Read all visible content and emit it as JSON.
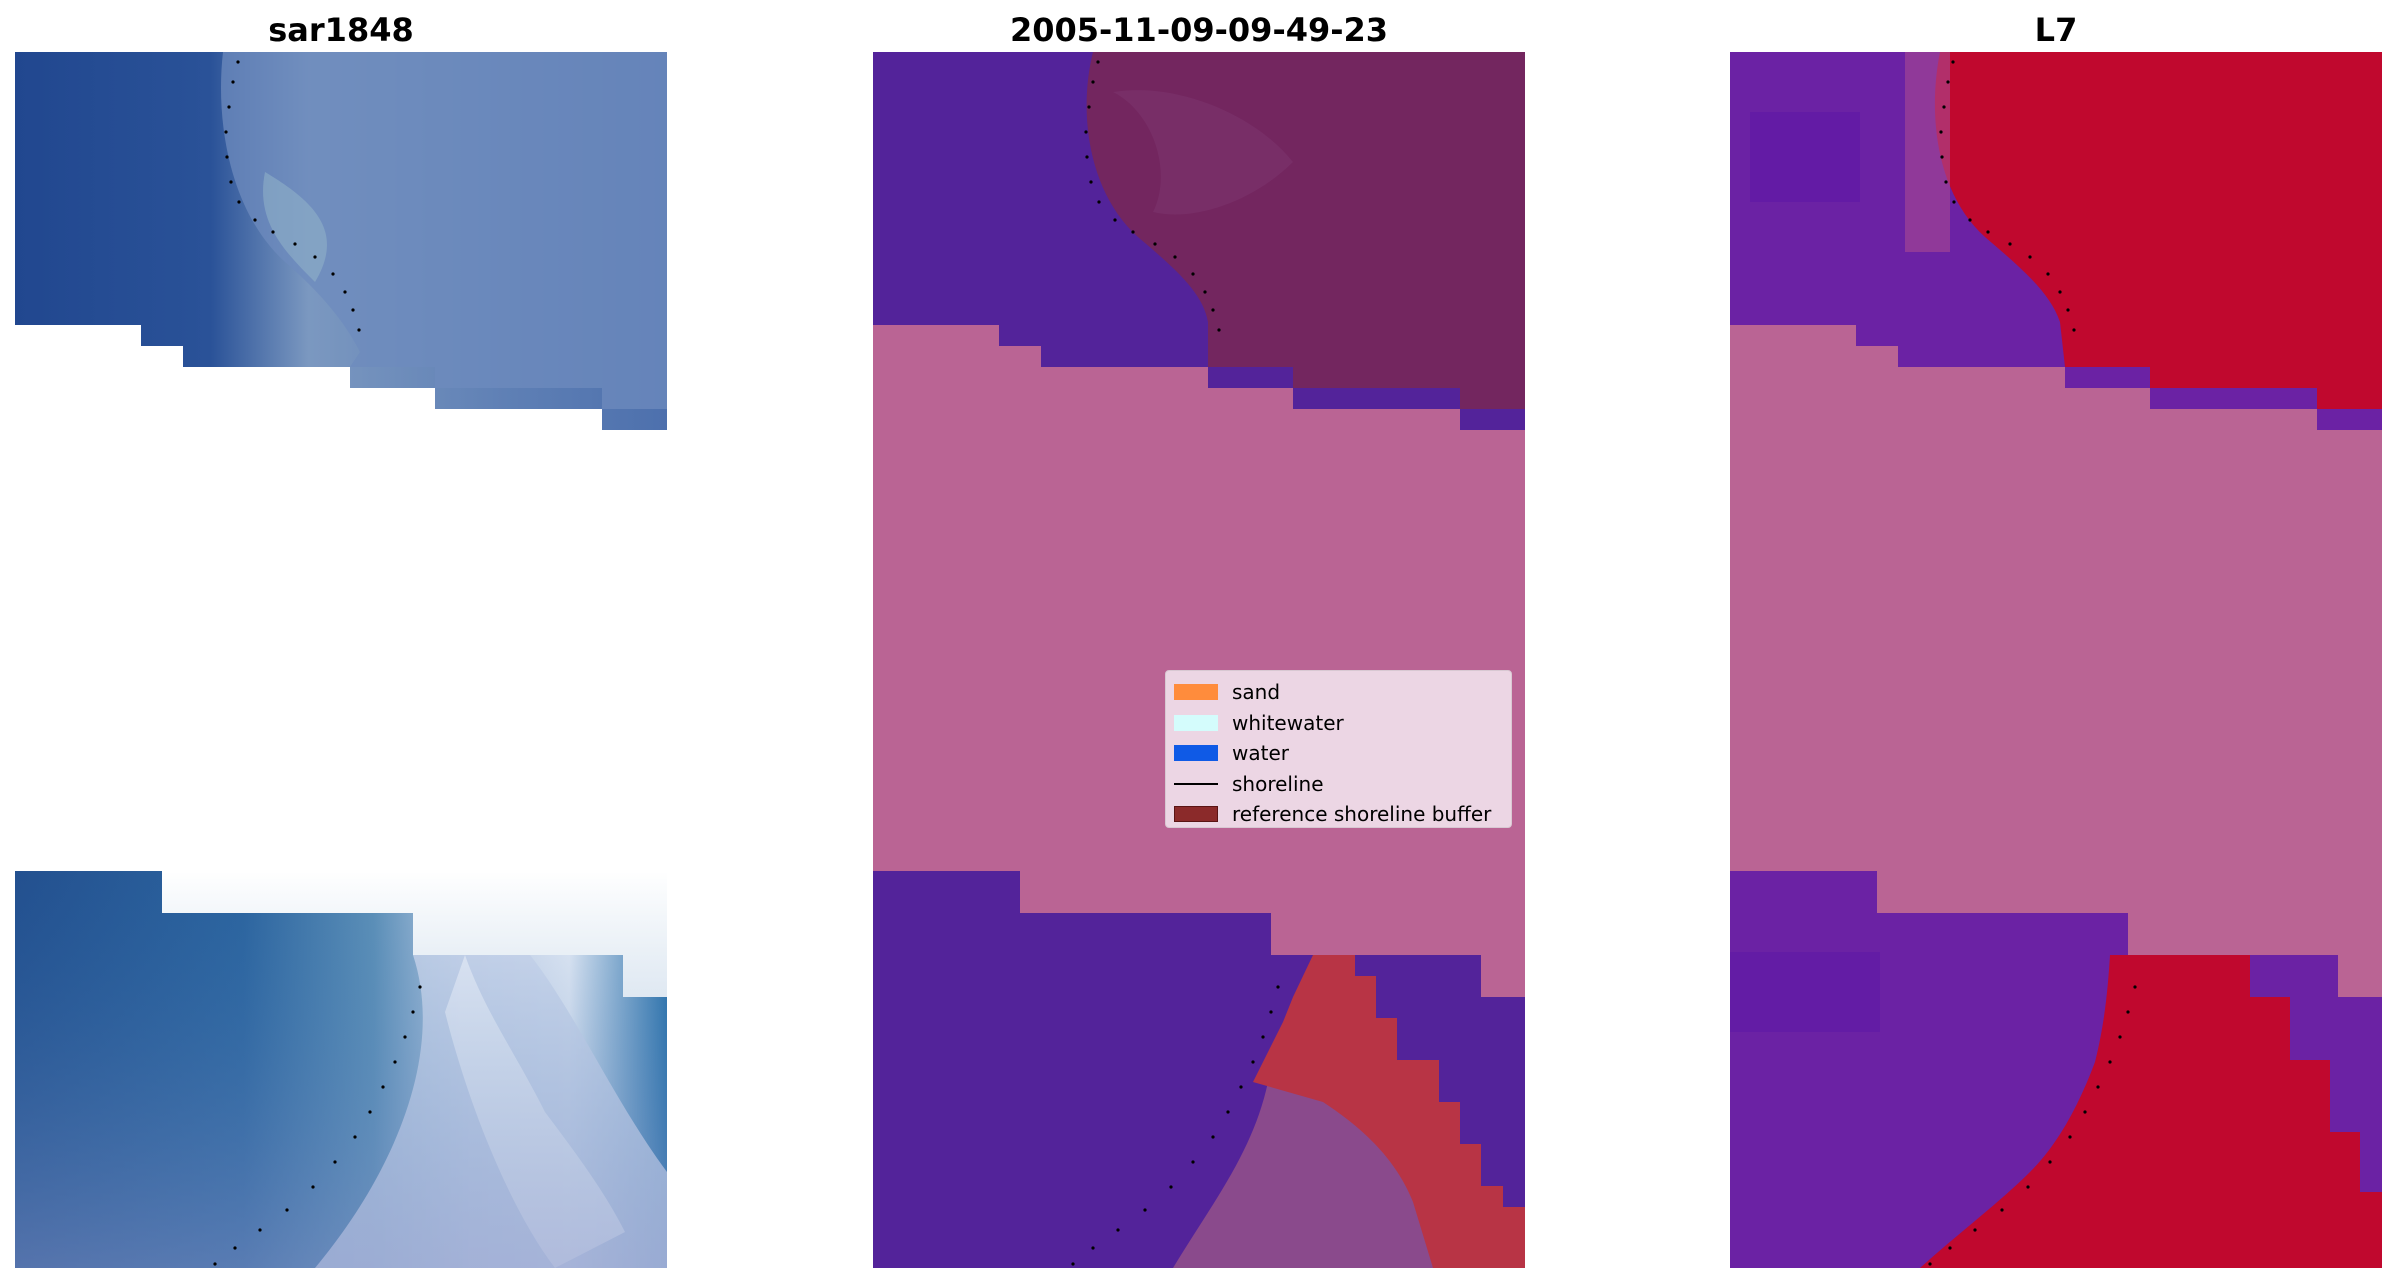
{
  "panels": [
    {
      "title": "sar1848"
    },
    {
      "title": "2005-11-09-09-49-23"
    },
    {
      "title": "L7"
    }
  ],
  "legend": {
    "items": [
      {
        "label": "sand",
        "kind": "patch",
        "color": "#ff8c3c"
      },
      {
        "label": "whitewater",
        "kind": "patch",
        "color": "#d4fcfc"
      },
      {
        "label": "water",
        "kind": "patch",
        "color": "#0f5ae6"
      },
      {
        "label": "shoreline",
        "kind": "line",
        "color": "#000000"
      },
      {
        "label": "reference shoreline buffer",
        "kind": "patch",
        "color": "#8b2a2a"
      }
    ]
  },
  "colors": {
    "rgb_water": "#21478f",
    "rgb_land": "#6a86b8",
    "rgb_surf": "#c9d2e6",
    "rgb_nearshore": "#2f73ad",
    "classified_water": "#53239a",
    "classified_land": "#73265f",
    "classified_nodata_overlay": "#ba6494",
    "classified_buffer": "#b83445",
    "classified_whitewater_land": "#8a4a8c",
    "index_land": "#c0082e",
    "index_water": "#6b22a4",
    "shoreline": "#000000"
  }
}
